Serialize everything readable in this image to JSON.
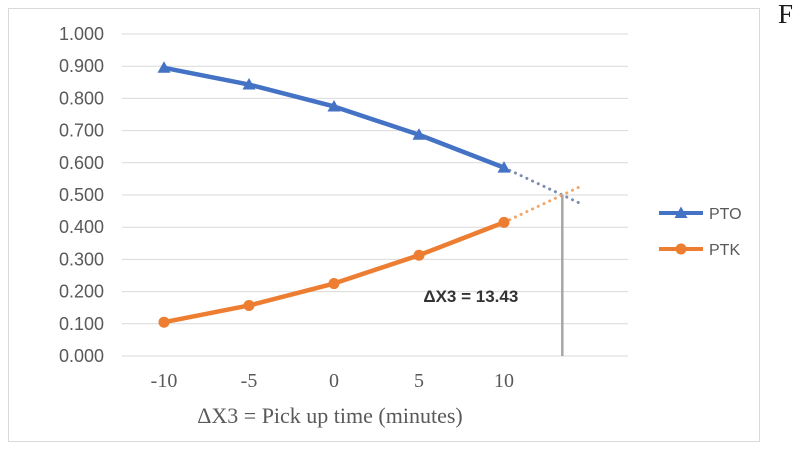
{
  "document": {
    "page_fragment": "F"
  },
  "chart_data": {
    "type": "line",
    "title": "",
    "xlabel": "ΔX3 = Pick up time (minutes)",
    "ylabel": "",
    "x": [
      -10,
      -5,
      0,
      5,
      10
    ],
    "xtick_labels": [
      "-10",
      "-5",
      "0",
      "5",
      "10"
    ],
    "ytick_labels": [
      "0.000",
      "0.100",
      "0.200",
      "0.300",
      "0.400",
      "0.500",
      "0.600",
      "0.700",
      "0.800",
      "0.900",
      "1.000"
    ],
    "ylim": [
      0,
      1
    ],
    "ytick_step": 0.1,
    "grid": true,
    "legend_position": "right",
    "series": [
      {
        "name": "PTO",
        "color": "#4472C4",
        "extrapolation_color": "#7b8db0",
        "marker": "triangle",
        "values": [
          0.895,
          0.843,
          0.775,
          0.687,
          0.585
        ]
      },
      {
        "name": "PTK",
        "color": "#ED7D31",
        "extrapolation_color": "#f2a668",
        "marker": "circle",
        "values": [
          0.105,
          0.157,
          0.225,
          0.313,
          0.415
        ]
      }
    ],
    "extrapolation": {
      "style": "dotted",
      "intersection_x": 13.43,
      "intersection_y": 0.5,
      "x_end": 14.55,
      "drop_line_color": "#a6a6a6"
    },
    "annotation": {
      "text": "ΔX3 = 13.43",
      "x": 8.05,
      "y": 0.168
    },
    "colors": {
      "grid": "#d9d9d9",
      "axis_text": "#595959",
      "annotation_text": "#333333",
      "legend_text": "#595959"
    }
  }
}
